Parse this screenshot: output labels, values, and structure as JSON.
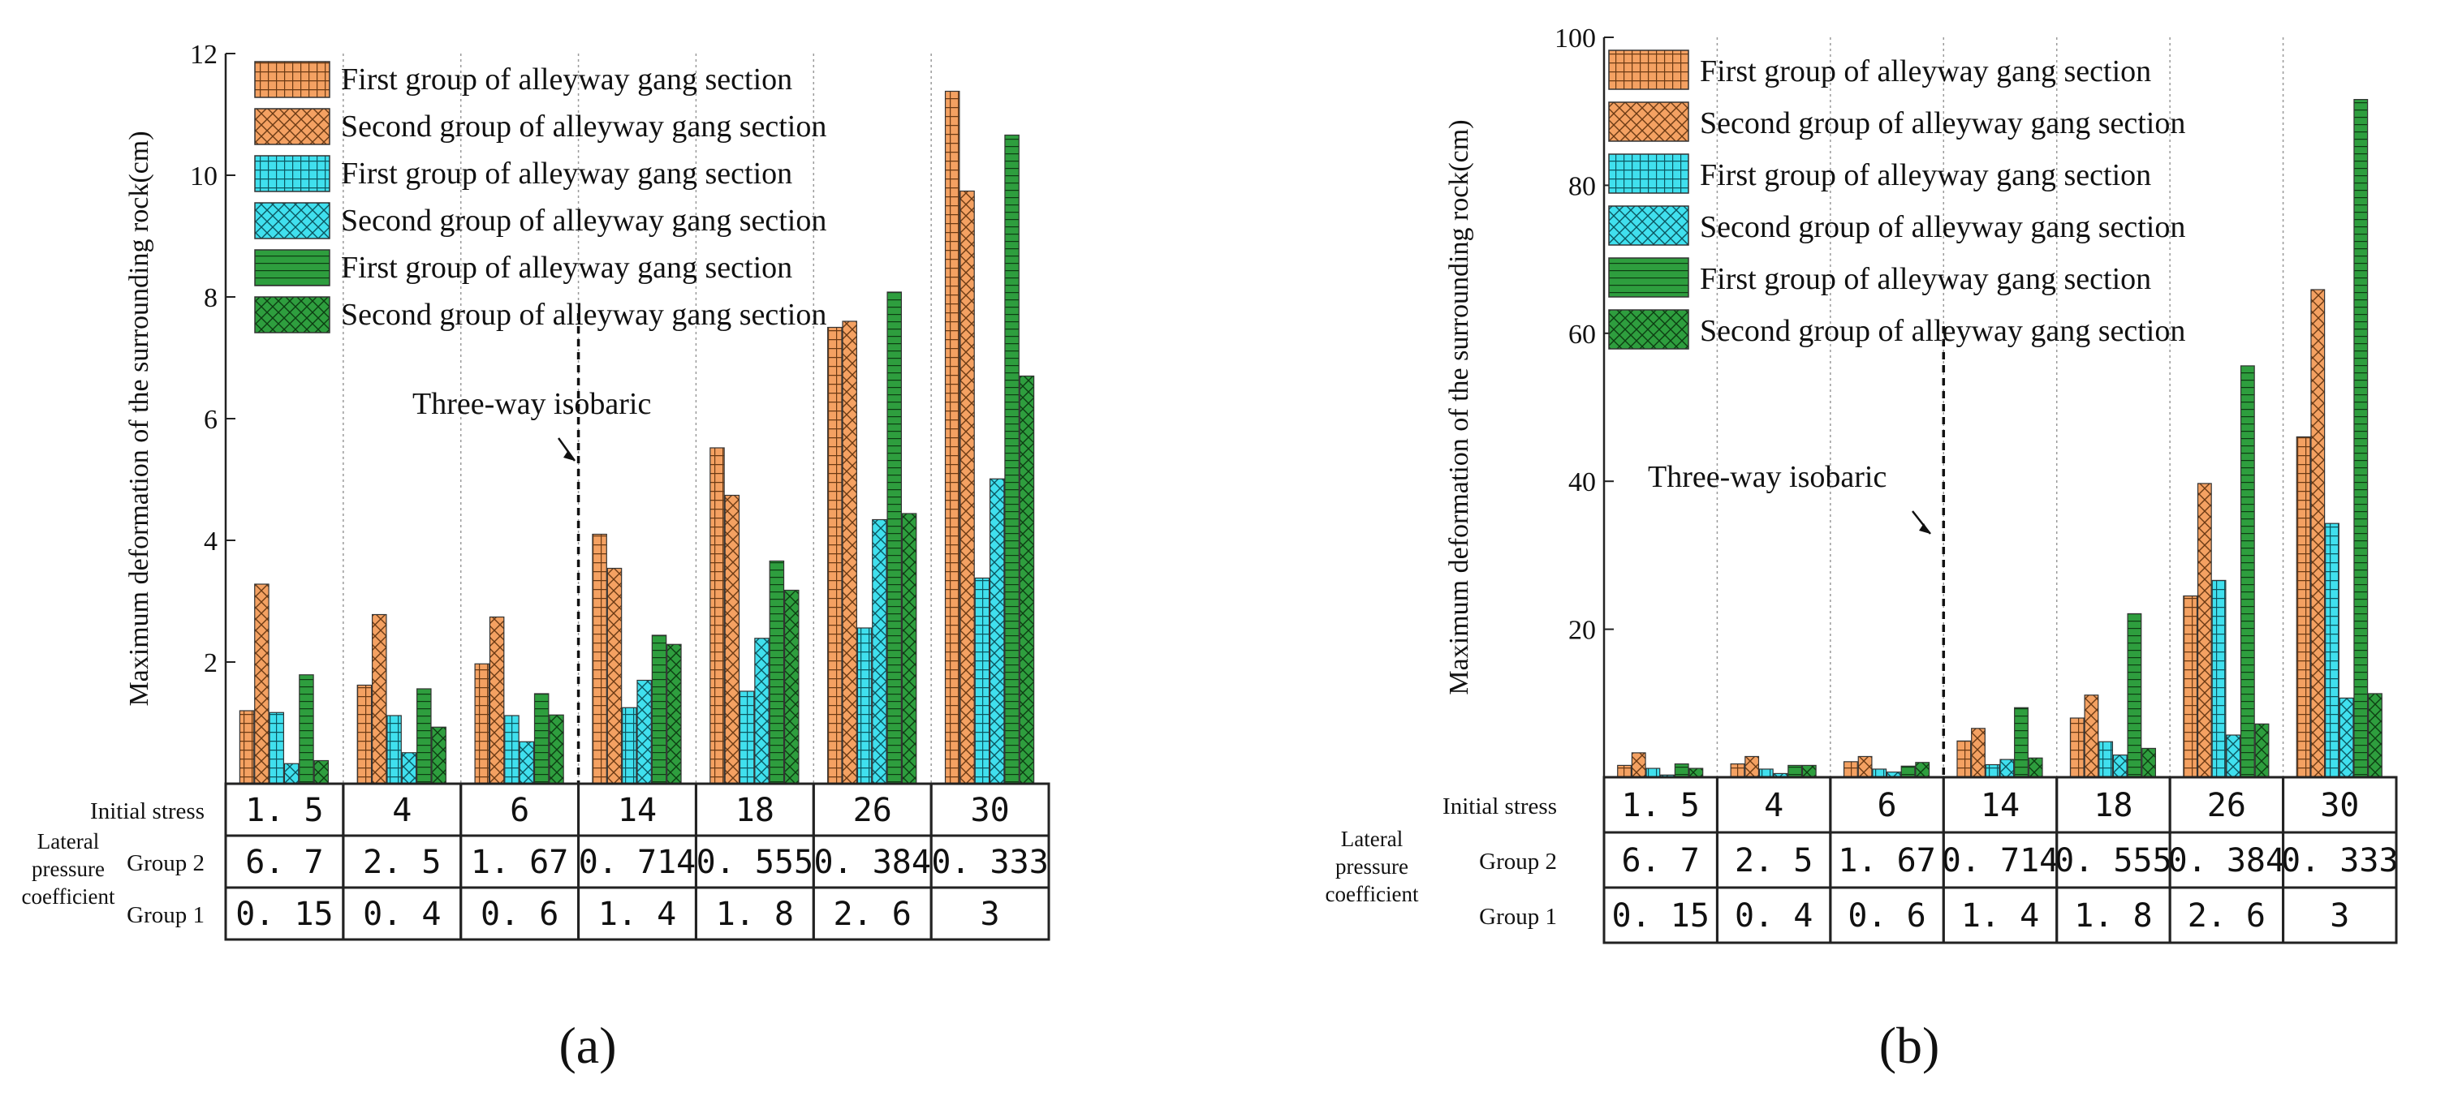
{
  "chart_data": [
    {
      "panel": "(a)",
      "type": "bar",
      "ylabel": "Maximum deformation of the surrounding rock(cm)",
      "ylim": [
        0,
        12
      ],
      "yticks": [
        2,
        4,
        6,
        8,
        10,
        12
      ],
      "categories": [
        "1. 5",
        "4",
        "6",
        "14",
        "18",
        "26",
        "30"
      ],
      "series": [
        {
          "name": "First group of alleyway gang section",
          "color": "#F4A162",
          "pattern": "grid",
          "values": [
            1.2,
            1.62,
            1.97,
            4.1,
            5.52,
            7.5,
            11.38
          ]
        },
        {
          "name": "Second group of alleyway gang section",
          "color": "#F4A162",
          "pattern": "cross",
          "values": [
            3.28,
            2.78,
            2.74,
            3.54,
            4.74,
            7.6,
            9.74
          ]
        },
        {
          "name": "First group of alleyway gang section",
          "color": "#40E0EE",
          "pattern": "grid",
          "values": [
            1.17,
            1.12,
            1.12,
            1.25,
            1.52,
            2.56,
            3.38
          ]
        },
        {
          "name": "Second group of alleyway gang section",
          "color": "#40E0EE",
          "pattern": "cross",
          "values": [
            0.33,
            0.51,
            0.69,
            1.7,
            2.39,
            4.34,
            5.01
          ]
        },
        {
          "name": "First group of alleyway gang section",
          "color": "#2E9E3E",
          "pattern": "hlines",
          "values": [
            1.79,
            1.56,
            1.48,
            2.44,
            3.66,
            8.08,
            10.66
          ]
        },
        {
          "name": "Second group of alleyway gang section",
          "color": "#2E9E3E",
          "pattern": "cross",
          "values": [
            0.38,
            0.93,
            1.13,
            2.29,
            3.18,
            4.44,
            6.7
          ]
        }
      ],
      "annotation": {
        "text": "Three-way isobaric",
        "between_index": 2.5
      },
      "table": {
        "row_initial_label": "Initial stress",
        "row_group_label": "Lateral pressure coefficient",
        "group2_label": "Group 2",
        "group1_label": "Group 1",
        "initial": [
          "1. 5",
          "4",
          "6",
          "14",
          "18",
          "26",
          "30"
        ],
        "group2": [
          "6. 7",
          "2. 5",
          "1. 67",
          "0. 714",
          "0. 555",
          "0. 384",
          "0. 333"
        ],
        "group1": [
          "0. 15",
          "0. 4",
          "0. 6",
          "1. 4",
          "1. 8",
          "2. 6",
          "3"
        ]
      }
    },
    {
      "panel": "(b)",
      "type": "bar",
      "ylabel": "Maximum deformation of the surrounding rock(cm)",
      "ylim": [
        0,
        100
      ],
      "yticks": [
        20,
        40,
        60,
        80,
        100
      ],
      "categories": [
        "1. 5",
        "4",
        "6",
        "14",
        "18",
        "26",
        "30"
      ],
      "series": [
        {
          "name": "First group of alleyway gang section",
          "color": "#F4A162",
          "pattern": "grid",
          "values": [
            1.6,
            1.8,
            2.1,
            4.9,
            8.0,
            24.5,
            46.0
          ]
        },
        {
          "name": "Second group of alleyway gang section",
          "color": "#F4A162",
          "pattern": "cross",
          "values": [
            3.3,
            2.8,
            2.8,
            6.6,
            11.1,
            39.7,
            65.9
          ]
        },
        {
          "name": "First group of alleyway gang section",
          "color": "#40E0EE",
          "pattern": "grid",
          "values": [
            1.2,
            1.1,
            1.1,
            1.7,
            4.8,
            26.6,
            34.3
          ]
        },
        {
          "name": "Second group of alleyway gang section",
          "color": "#40E0EE",
          "pattern": "cross",
          "values": [
            0.3,
            0.5,
            0.7,
            2.4,
            3.0,
            5.7,
            10.7
          ]
        },
        {
          "name": "First group of alleyway gang section",
          "color": "#2E9E3E",
          "pattern": "hlines",
          "values": [
            1.8,
            1.6,
            1.5,
            9.4,
            22.1,
            55.6,
            91.6
          ]
        },
        {
          "name": "Second group of alleyway gang section",
          "color": "#2E9E3E",
          "pattern": "cross",
          "values": [
            1.2,
            1.6,
            2.0,
            2.6,
            3.9,
            7.2,
            11.3
          ]
        }
      ],
      "annotation": {
        "text": "Three-way isobaric",
        "between_index": 2.5
      },
      "table": {
        "row_initial_label": "Initial stress",
        "row_group_label": "Lateral pressure coefficient",
        "group2_label": "Group 2",
        "group1_label": "Group 1",
        "initial": [
          "1. 5",
          "4",
          "6",
          "14",
          "18",
          "26",
          "30"
        ],
        "group2": [
          "6. 7",
          "2. 5",
          "1. 67",
          "0. 714",
          "0. 555",
          "0. 384",
          "0. 333"
        ],
        "group1": [
          "0. 15",
          "0. 4",
          "0. 6",
          "1. 4",
          "1. 8",
          "2. 6",
          "3"
        ]
      }
    }
  ]
}
